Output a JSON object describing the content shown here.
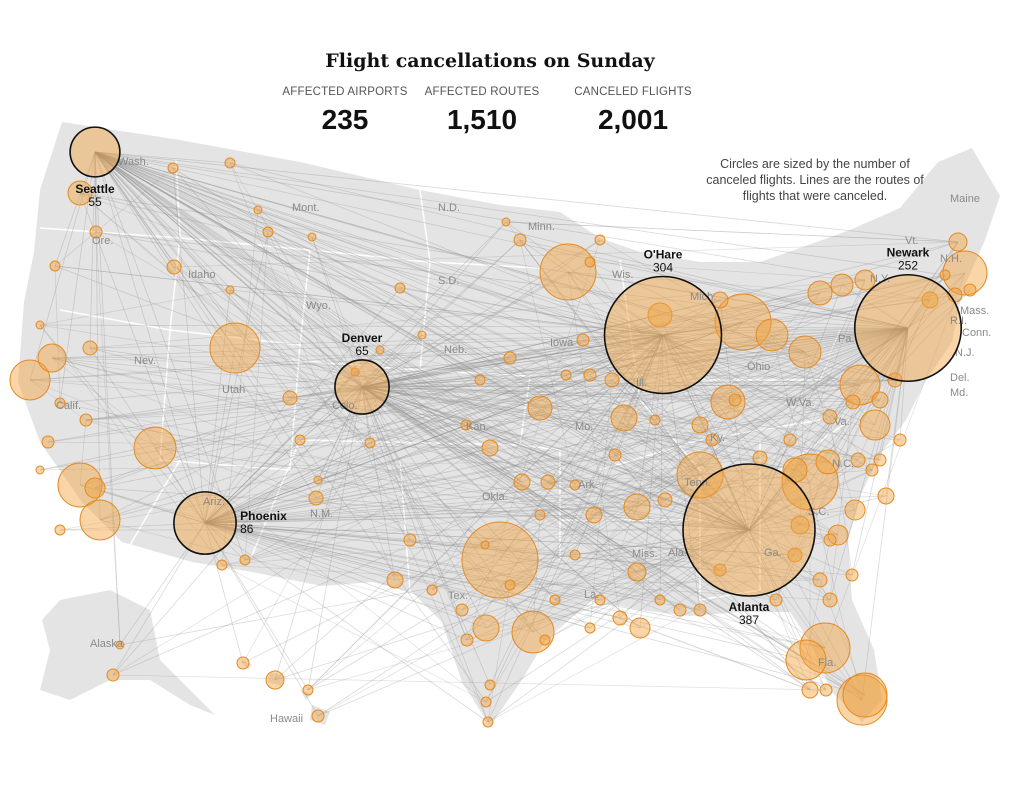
{
  "title": "Flight cancellations on Sunday",
  "stats": [
    {
      "label": "AFFECTED AIRPORTS",
      "value": "235"
    },
    {
      "label": "AFFECTED ROUTES",
      "value": "1,510"
    },
    {
      "label": "CANCELED FLIGHTS",
      "value": "2,001"
    }
  ],
  "note": "Circles are sized by the number of canceled flights. Lines are the routes of flights that were canceled.",
  "colors": {
    "circle_fill": "#f2a23c",
    "circle_stroke": "#e38a22",
    "land": "#e4e4e4",
    "route": "#8c8c8c",
    "hub_ring": "#111111"
  },
  "hubs": [
    {
      "name": "Seattle",
      "flights": 55
    },
    {
      "name": "Denver",
      "flights": 65
    },
    {
      "name": "Phoenix",
      "flights": 86
    },
    {
      "name": "O'Hare",
      "flights": 304
    },
    {
      "name": "Newark",
      "flights": 252
    },
    {
      "name": "Atlanta",
      "flights": 387
    }
  ],
  "state_labels": [
    "Wash.",
    "Ore.",
    "Idaho",
    "Mont.",
    "N.D.",
    "Minn.",
    "Wis.",
    "S.D.",
    "Wyo.",
    "Neb.",
    "Iowa",
    "Nev.",
    "Utah",
    "Calif.",
    "Colo.",
    "Kan.",
    "Mo.",
    "Ill.",
    "Ohio",
    "Pa.",
    "W.Va.",
    "Va.",
    "Ky.",
    "Tenn.",
    "N.C.",
    "Ariz.",
    "N.M.",
    "Okla.",
    "Ark.",
    "Tex.",
    "Miss.",
    "Ala.",
    "Ga.",
    "La.",
    "Fla.",
    "Alaska",
    "Hawaii",
    "Maine",
    "Vt.",
    "N.H.",
    "N.Y.",
    "Mass.",
    "R.I.",
    "Conn.",
    "N.J.",
    "Del.",
    "Md.",
    "Mich.",
    "S.C."
  ]
}
